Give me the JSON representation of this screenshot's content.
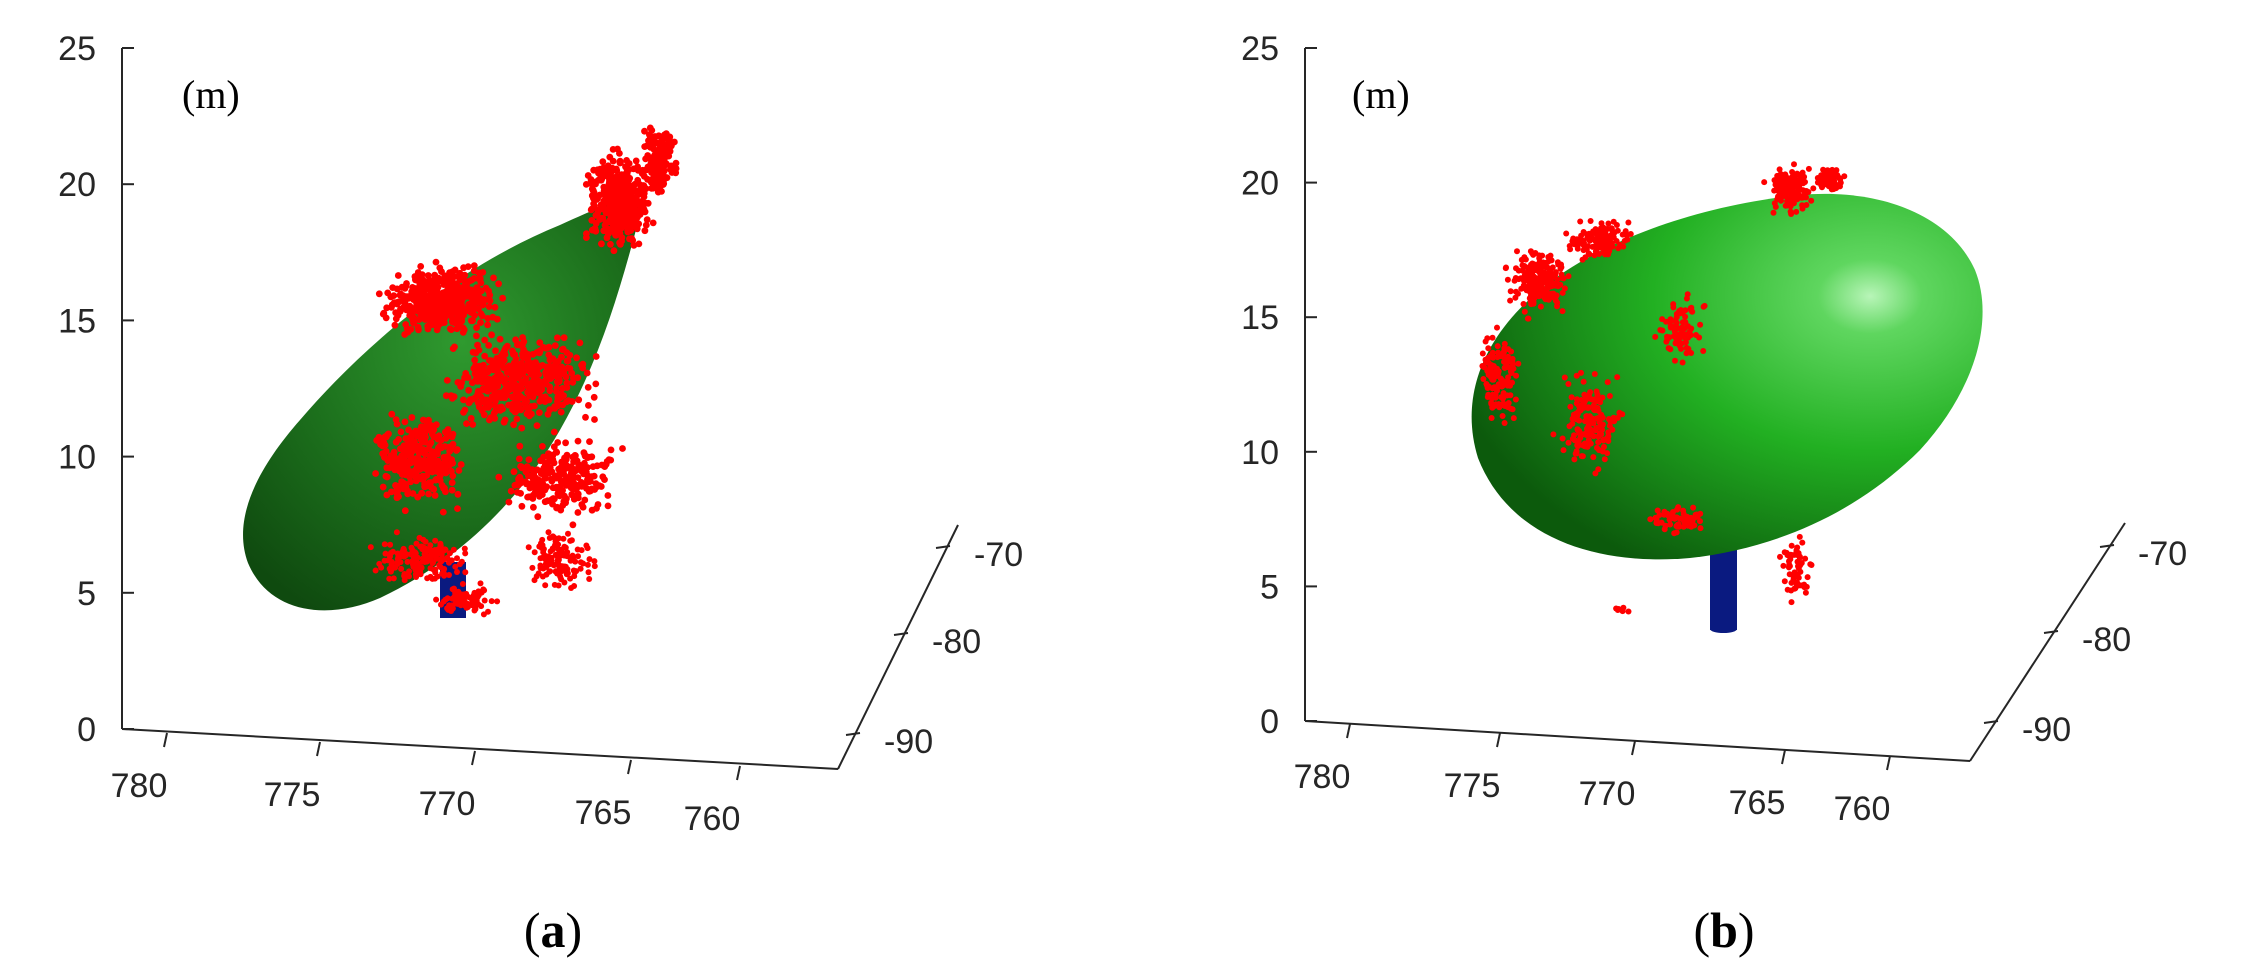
{
  "chart_data": [
    {
      "type": "scatter",
      "panel_label": "a",
      "unit_label": "(m)",
      "axes": {
        "z": {
          "ticks": [
            0,
            5,
            10,
            15,
            20,
            25
          ],
          "range": [
            0,
            25
          ]
        },
        "x": {
          "ticks": [
            780,
            775,
            770,
            765,
            760
          ],
          "range": [
            782,
            758
          ]
        },
        "y": {
          "ticks": [
            -90,
            -80,
            -70
          ],
          "range": [
            -95,
            -65
          ]
        }
      },
      "grid": false,
      "series": [
        {
          "kind": "ellipsoid-surface",
          "color": "#1f7a1f"
        },
        {
          "kind": "point-cloud",
          "color": "#ff0000"
        },
        {
          "kind": "trunk-cylinder",
          "color": "#0a1a80"
        }
      ]
    },
    {
      "type": "scatter",
      "panel_label": "b",
      "unit_label": "(m)",
      "axes": {
        "z": {
          "ticks": [
            0,
            5,
            10,
            15,
            20,
            25
          ],
          "range": [
            0,
            25
          ]
        },
        "x": {
          "ticks": [
            780,
            775,
            770,
            765,
            760
          ],
          "range": [
            782,
            758
          ]
        },
        "y": {
          "ticks": [
            -90,
            -80,
            -70
          ],
          "range": [
            -95,
            -65
          ]
        }
      },
      "grid": false,
      "series": [
        {
          "kind": "ellipsoid-surface",
          "color": "#22b022"
        },
        {
          "kind": "point-cloud",
          "color": "#ff0000"
        },
        {
          "kind": "trunk-cylinder",
          "color": "#0a1a80"
        }
      ]
    }
  ]
}
